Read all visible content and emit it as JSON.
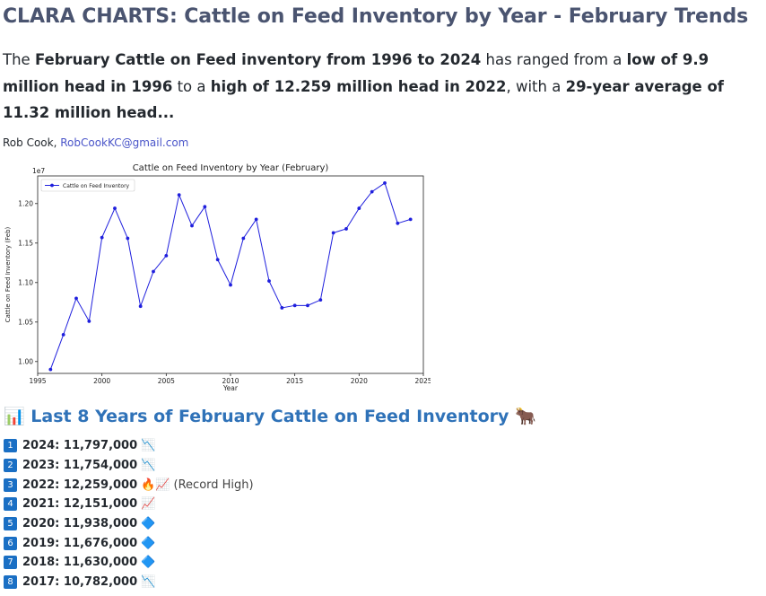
{
  "header": {
    "title": "CLARA CHARTS:  Cattle on Feed Inventory by Year - February Trends"
  },
  "intro": {
    "p1": "The ",
    "b1": "February Cattle on Feed inventory from 1996 to 2024",
    "p2": " has ranged from a ",
    "b2": "low of 9.9 million head in 1996",
    "p3": " to a ",
    "b3": "high of 12.259 million head in 2022",
    "p4": ", with a ",
    "b4": "29-year average of 11.32 million head..."
  },
  "byline": {
    "author": "Rob Cook, ",
    "email": "RobCookKC@gmail.com"
  },
  "chart_data": {
    "type": "line",
    "title": "Cattle on Feed Inventory by Year (February)",
    "xlabel": "Year",
    "ylabel": "Cattle on Feed Inventory (Feb)",
    "y_multiplier": "1e7",
    "legend": "top-left",
    "legend_label": "Cattle on Feed Inventory",
    "xlim": [
      1995,
      2025
    ],
    "ylim": [
      0.985,
      1.235
    ],
    "xticks": [
      1995,
      2000,
      2005,
      2010,
      2015,
      2020,
      2025
    ],
    "yticks": [
      1.0,
      1.05,
      1.1,
      1.15,
      1.2
    ],
    "ytick_labels": [
      "1.00",
      "1.05",
      "1.10",
      "1.15",
      "1.20"
    ],
    "color": "#1f1fdd",
    "grid": false,
    "x": [
      1996,
      1997,
      1998,
      1999,
      2000,
      2001,
      2002,
      2003,
      2004,
      2005,
      2006,
      2007,
      2008,
      2009,
      2010,
      2011,
      2012,
      2013,
      2014,
      2015,
      2016,
      2017,
      2018,
      2019,
      2020,
      2021,
      2022,
      2023,
      2024
    ],
    "y": [
      0.99,
      1.034,
      1.08,
      1.051,
      1.157,
      1.194,
      1.156,
      1.07,
      1.114,
      1.134,
      1.211,
      1.172,
      1.196,
      1.129,
      1.097,
      1.156,
      1.18,
      1.102,
      1.068,
      1.071,
      1.071,
      1.078,
      1.163,
      1.168,
      1.194,
      1.215,
      1.226,
      1.175,
      1.18
    ]
  },
  "section": {
    "icon": "📊",
    "title": "Last 8 Years of February Cattle on Feed Inventory",
    "emoji": "🐂"
  },
  "list": [
    {
      "n": "1",
      "text": "2024: 11,797,000",
      "sym": "📉",
      "note": ""
    },
    {
      "n": "2",
      "text": "2023: 11,754,000",
      "sym": "📉",
      "note": ""
    },
    {
      "n": "3",
      "text": "2022: 12,259,000",
      "sym": "🔥📈",
      "note": "(Record High)"
    },
    {
      "n": "4",
      "text": "2021: 12,151,000",
      "sym": "📈",
      "note": ""
    },
    {
      "n": "5",
      "text": "2020: 11,938,000",
      "sym": "🔷",
      "note": ""
    },
    {
      "n": "6",
      "text": "2019: 11,676,000",
      "sym": "🔷",
      "note": ""
    },
    {
      "n": "7",
      "text": "2018: 11,630,000",
      "sym": "🔷",
      "note": ""
    },
    {
      "n": "8",
      "text": "2017: 10,782,000",
      "sym": "📉",
      "note": ""
    }
  ]
}
